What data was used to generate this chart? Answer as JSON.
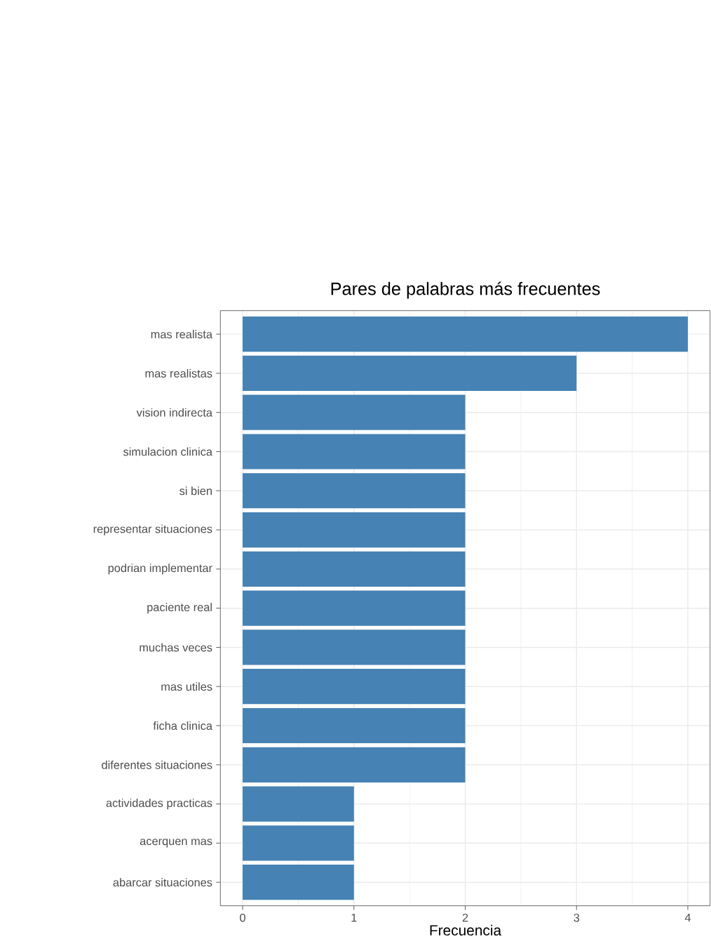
{
  "chart_data": {
    "type": "bar",
    "orientation": "horizontal",
    "title": "Pares de palabras más frecuentes",
    "xlabel": "Frecuencia",
    "categories": [
      "mas realista",
      "mas realistas",
      "vision indirecta",
      "simulacion clinica",
      "si bien",
      "representar situaciones",
      "podrian implementar",
      "paciente real",
      "muchas veces",
      "mas utiles",
      "ficha clinica",
      "diferentes situaciones",
      "actividades practicas",
      "acerquen mas",
      "abarcar situaciones"
    ],
    "values": [
      4,
      3,
      2,
      2,
      2,
      2,
      2,
      2,
      2,
      2,
      2,
      2,
      1,
      1,
      1
    ],
    "color": "#4682b4",
    "xlim": [
      -0.2,
      4.2
    ],
    "xticks": [
      0,
      1,
      2,
      3,
      4
    ],
    "grid": true
  }
}
